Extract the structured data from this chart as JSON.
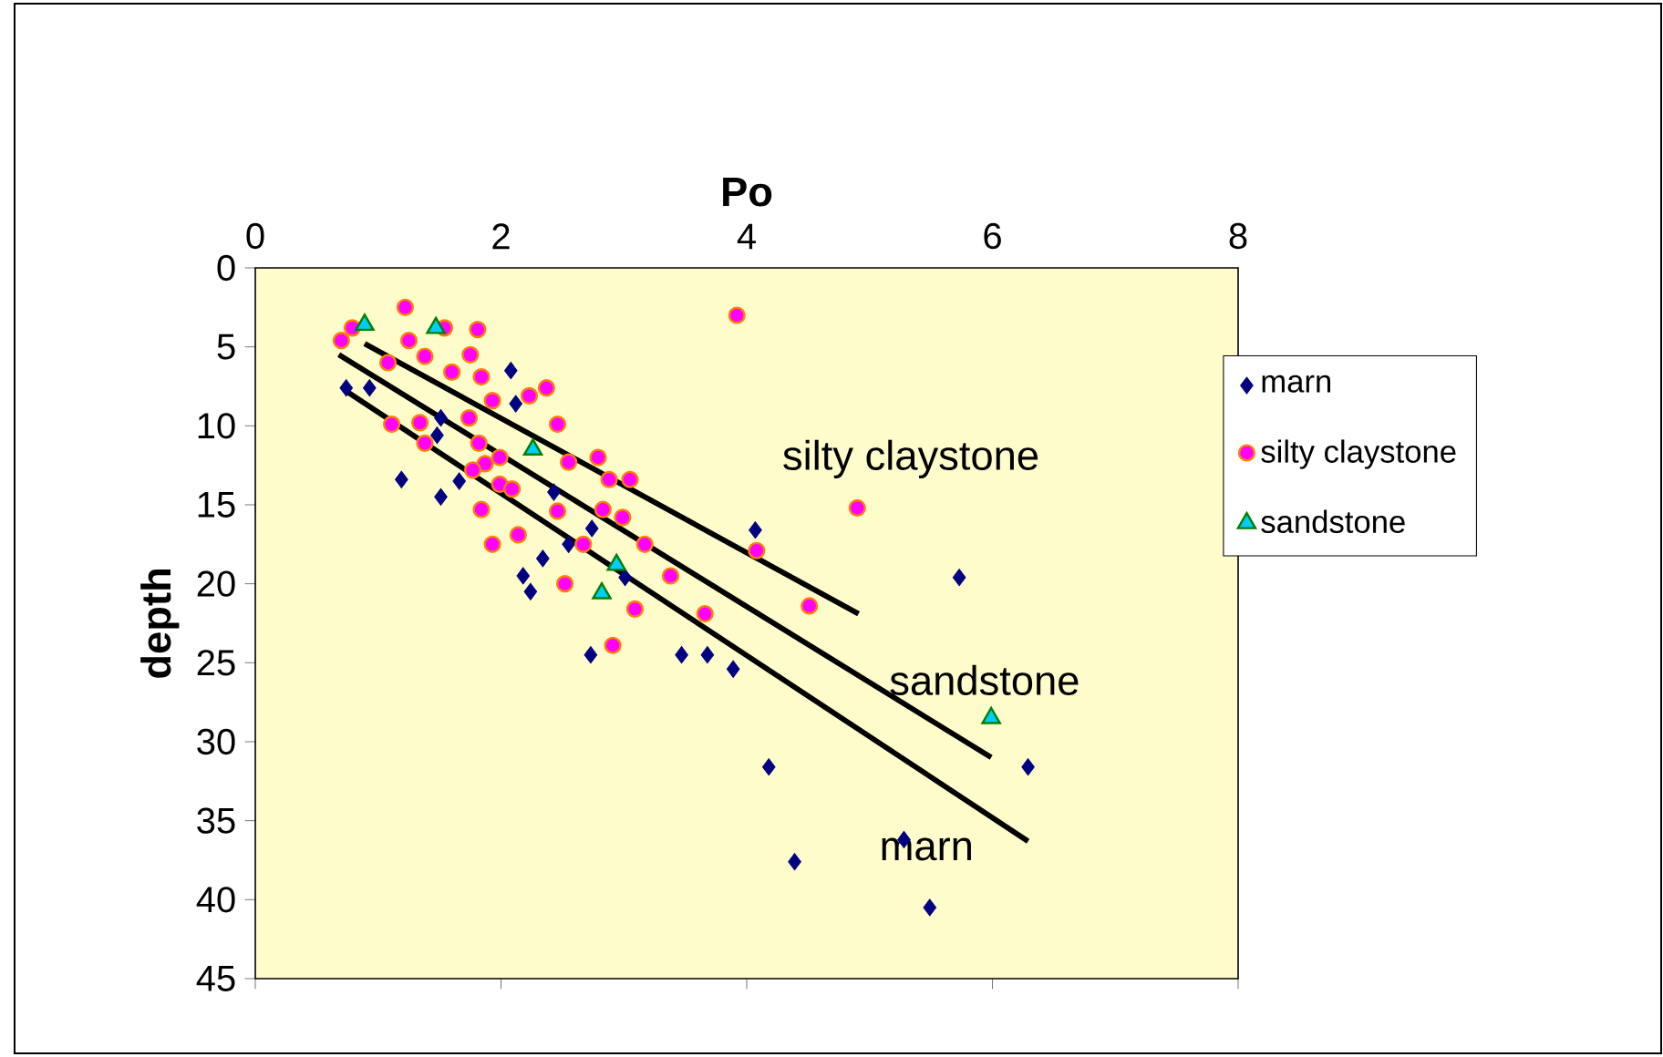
{
  "chart_data": {
    "type": "scatter",
    "xlabel": "Po",
    "ylabel": "depth",
    "xlim": [
      0,
      8
    ],
    "xticks": [
      0,
      2,
      4,
      6,
      8
    ],
    "ylim": [
      45,
      0
    ],
    "yticks": [
      0,
      5,
      10,
      15,
      20,
      25,
      30,
      35,
      40,
      45
    ],
    "grid": false,
    "legend": "right",
    "series": [
      {
        "name": "marn",
        "color": "#000080",
        "marker": "diamond",
        "x": [
          0.74,
          0.93,
          2.08,
          2.12,
          1.19,
          1.51,
          1.66,
          1.51,
          1.48,
          2.74,
          2.55,
          2.34,
          2.18,
          2.24,
          2.73,
          3.47,
          3.68,
          4.07,
          5.73,
          3.89,
          4.18,
          6.29,
          5.28,
          4.39,
          5.49,
          3.01,
          2.43
        ],
        "values": [
          7.6,
          7.6,
          6.5,
          8.6,
          13.4,
          14.5,
          13.5,
          9.5,
          10.6,
          16.5,
          17.5,
          18.4,
          19.5,
          20.5,
          24.5,
          24.5,
          24.5,
          16.6,
          19.6,
          25.4,
          31.6,
          31.6,
          36.2,
          37.6,
          40.5,
          19.6,
          14.2
        ]
      },
      {
        "name": "silty claystone",
        "color": "#ff00ff",
        "marker": "circle",
        "x": [
          1.22,
          0.7,
          0.79,
          1.25,
          1.54,
          1.81,
          1.38,
          1.08,
          1.75,
          1.6,
          1.84,
          1.93,
          2.23,
          2.37,
          2.46,
          1.11,
          1.34,
          1.38,
          1.74,
          1.82,
          1.99,
          1.87,
          1.77,
          1.99,
          2.09,
          2.55,
          2.79,
          2.88,
          2.83,
          2.46,
          1.84,
          1.93,
          2.14,
          2.67,
          2.52,
          3.09,
          3.38,
          2.91,
          3.66,
          3.92,
          4.9,
          4.08,
          4.51,
          3.17,
          2.99,
          3.05
        ],
        "values": [
          2.5,
          4.6,
          3.8,
          4.6,
          3.8,
          3.9,
          5.6,
          6.0,
          5.5,
          6.6,
          6.9,
          8.4,
          8.1,
          7.6,
          9.9,
          9.9,
          9.8,
          11.1,
          9.5,
          11.1,
          12.0,
          12.4,
          12.8,
          13.7,
          14.0,
          12.3,
          12.0,
          13.4,
          15.3,
          15.4,
          15.3,
          17.5,
          16.9,
          17.5,
          20.0,
          21.6,
          19.5,
          23.9,
          21.9,
          3.0,
          15.2,
          17.9,
          21.4,
          17.5,
          15.8,
          13.4
        ]
      },
      {
        "name": "sandstone",
        "color": "#00ccff",
        "marker": "triangle",
        "x": [
          0.89,
          1.47,
          2.26,
          2.94,
          2.82,
          5.99
        ],
        "values": [
          3.6,
          3.8,
          11.5,
          18.8,
          20.6,
          28.5
        ]
      },
      {
        "type": "line",
        "color": "#000000",
        "x": [
          0.89,
          4.91
        ],
        "values": [
          4.8,
          21.9
        ]
      },
      {
        "type": "line",
        "color": "#000000",
        "x": [
          0.68,
          5.99
        ],
        "values": [
          5.5,
          31.0
        ]
      },
      {
        "type": "line",
        "color": "#000000",
        "x": [
          0.74,
          6.29
        ],
        "values": [
          7.8,
          36.3
        ]
      }
    ],
    "annotations": [
      "silty claystone",
      "sandstone",
      "marn"
    ]
  }
}
